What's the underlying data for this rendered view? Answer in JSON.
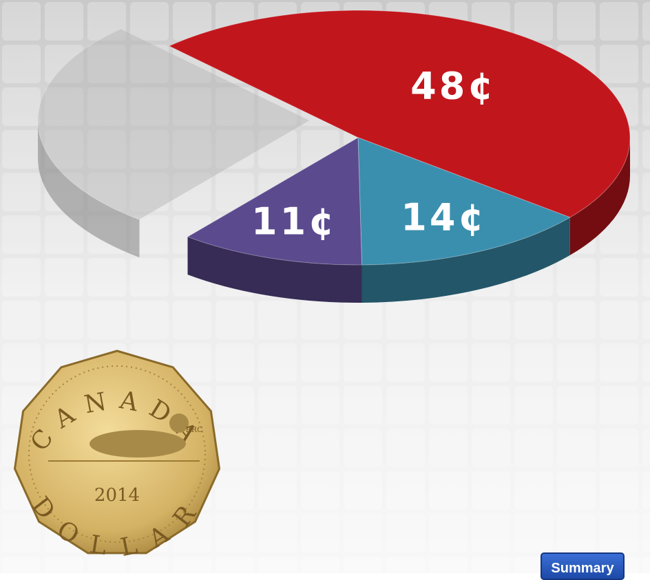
{
  "chart_data": {
    "type": "pie",
    "categories": [
      null,
      null,
      null,
      null
    ],
    "values": [
      48,
      14,
      11,
      27
    ],
    "value_labels": [
      "48¢",
      "14¢",
      "11¢",
      null
    ],
    "colors": [
      "#c2161d",
      "#3b8fae",
      "#5b4a8e",
      "#b4b4b4"
    ]
  },
  "coin": {
    "top": "CANADA",
    "bottom": "DOLLAR",
    "year": "2014",
    "mint": "RRC"
  },
  "button": {
    "label": "Summary"
  }
}
